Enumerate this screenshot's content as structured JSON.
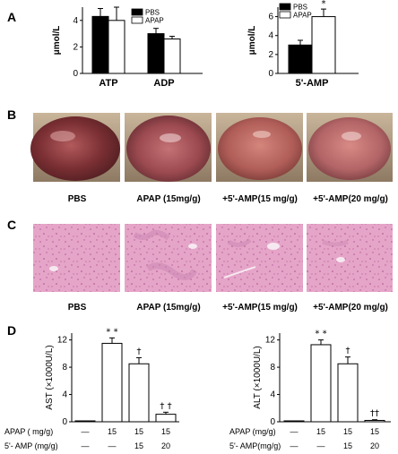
{
  "panels": {
    "A": "A",
    "B": "B",
    "C": "C",
    "D": "D"
  },
  "chart_data": [
    {
      "id": "A1",
      "type": "bar",
      "ylabel": "μmol/L",
      "categories": [
        "ATP",
        "ADP"
      ],
      "ylim": [
        0,
        5
      ],
      "yticks": [
        "0",
        "2",
        "4"
      ],
      "legend": [
        "PBS",
        "APAP"
      ],
      "series": [
        {
          "name": "PBS",
          "color": "#000000",
          "values": [
            4.3,
            3.0
          ],
          "errors": [
            0.6,
            0.4
          ]
        },
        {
          "name": "APAP",
          "color": "#ffffff",
          "values": [
            4.0,
            2.6
          ],
          "errors": [
            1.0,
            0.2
          ]
        }
      ]
    },
    {
      "id": "A2",
      "type": "bar",
      "ylabel": "μmol/L",
      "categories": [
        "5'-AMP"
      ],
      "ylim": [
        0,
        7
      ],
      "yticks": [
        "0",
        "2",
        "4",
        "6"
      ],
      "legend": [
        "PBS",
        "APAP"
      ],
      "series": [
        {
          "name": "PBS",
          "color": "#000000",
          "values": [
            3.0
          ],
          "errors": [
            0.5
          ]
        },
        {
          "name": "APAP",
          "color": "#ffffff",
          "values": [
            6.0
          ],
          "errors": [
            0.8
          ]
        }
      ],
      "annotations": [
        "*"
      ]
    },
    {
      "id": "D1",
      "type": "bar",
      "ylabel": "AST (×1000U/L)",
      "ylim": [
        0,
        13
      ],
      "yticks": [
        "0",
        "4",
        "8",
        "12"
      ],
      "values": [
        0,
        11.5,
        8.5,
        1.1
      ],
      "errors": [
        0,
        0.8,
        0.9,
        0.3
      ],
      "annotations": [
        "",
        "* *",
        "†",
        "† †"
      ],
      "row1_label": "APAP ( mg/g)",
      "row1_values": [
        "—",
        "15",
        "15",
        "15"
      ],
      "row2_label": "5'- AMP (mg/g)",
      "row2_values": [
        "—",
        "—",
        "15",
        "20"
      ]
    },
    {
      "id": "D2",
      "type": "bar",
      "ylabel": "ALT (×1000U/L)",
      "ylim": [
        0,
        13
      ],
      "yticks": [
        "0",
        "4",
        "8",
        "12"
      ],
      "values": [
        0,
        11.3,
        8.5,
        0.2
      ],
      "errors": [
        0,
        0.7,
        1.0,
        0.1
      ],
      "annotations": [
        "",
        "* *",
        "†",
        "††"
      ],
      "row1_label": "APAP (mg/g)",
      "row1_values": [
        "—",
        "15",
        "15",
        "15"
      ],
      "row2_label": "5'- AMP(mg/g)",
      "row2_values": [
        "—",
        "—",
        "15",
        "20"
      ]
    }
  ],
  "photos_B": {
    "captions": [
      "PBS",
      "APAP (15mg/g)",
      "+5'-AMP(15 mg/g)",
      "+5'-AMP(20 mg/g)"
    ]
  },
  "photos_C": {
    "captions": [
      "PBS",
      "APAP (15mg/g)",
      "+5'-AMP(15 mg/g)",
      "+5'-AMP(20 mg/g)"
    ]
  }
}
